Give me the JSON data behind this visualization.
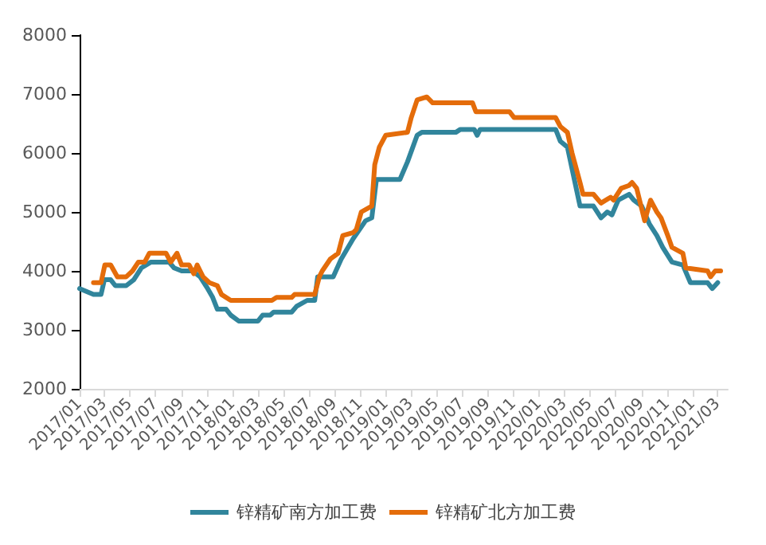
{
  "chart_data": {
    "type": "line",
    "xlim": [
      "2017-01-01",
      "2021-03-25"
    ],
    "ylim": [
      2000,
      8000
    ],
    "yticks": [
      2000,
      3000,
      4000,
      5000,
      6000,
      7000,
      8000
    ],
    "xticks": [
      {
        "value": "2017-01",
        "label": "2017/01"
      },
      {
        "value": "2017-03",
        "label": "2017/03"
      },
      {
        "value": "2017-05",
        "label": "2017/05"
      },
      {
        "value": "2017-07",
        "label": "2017/07"
      },
      {
        "value": "2017-09",
        "label": "2017/09"
      },
      {
        "value": "2017-11",
        "label": "2017/11"
      },
      {
        "value": "2018-01",
        "label": "2018/01"
      },
      {
        "value": "2018-03",
        "label": "2018/03"
      },
      {
        "value": "2018-05",
        "label": "2018/05"
      },
      {
        "value": "2018-07",
        "label": "2018/07"
      },
      {
        "value": "2018-09",
        "label": "2018/09"
      },
      {
        "value": "2018-11",
        "label": "2018/11"
      },
      {
        "value": "2019-01",
        "label": "2019/01"
      },
      {
        "value": "2019-03",
        "label": "2019/03"
      },
      {
        "value": "2019-05",
        "label": "2019/05"
      },
      {
        "value": "2019-07",
        "label": "2019/07"
      },
      {
        "value": "2019-09",
        "label": "2019/09"
      },
      {
        "value": "2019-11",
        "label": "2019/11"
      },
      {
        "value": "2020-01",
        "label": "2020/01"
      },
      {
        "value": "2020-03",
        "label": "2020/03"
      },
      {
        "value": "2020-05",
        "label": "2020/05"
      },
      {
        "value": "2020-07",
        "label": "2020/07"
      },
      {
        "value": "2020-09",
        "label": "2020/09"
      },
      {
        "value": "2020-11",
        "label": "2020/11"
      },
      {
        "value": "2021-01",
        "label": "2021/01"
      },
      {
        "value": "2021-03",
        "label": "2021/03"
      }
    ],
    "grid": false,
    "legend": "bottom",
    "marker": "none",
    "line_style": "solid",
    "series": [
      {
        "name": "锌精矿南方加工费",
        "color": "#31859c",
        "x": [
          "2017-01-01",
          "2017-02-03",
          "2017-02-21",
          "2017-03-01",
          "2017-03-16",
          "2017-03-27",
          "2017-04-22",
          "2017-05-10",
          "2017-05-28",
          "2017-06-20",
          "2017-08-02",
          "2017-08-14",
          "2017-09-01",
          "2017-09-27",
          "2017-10-15",
          "2017-11-02",
          "2017-11-14",
          "2017-11-25",
          "2017-12-16",
          "2017-12-27",
          "2018-01-15",
          "2018-03-02",
          "2018-03-13",
          "2018-03-31",
          "2018-04-08",
          "2018-05-21",
          "2018-06-02",
          "2018-06-27",
          "2018-07-15",
          "2018-07-22",
          "2018-08-28",
          "2018-09-16",
          "2018-10-15",
          "2018-11-13",
          "2018-11-28",
          "2018-12-09",
          "2019-02-03",
          "2019-02-21",
          "2019-03-16",
          "2019-03-27",
          "2019-06-16",
          "2019-06-27",
          "2019-07-30",
          "2019-08-06",
          "2019-08-13",
          "2020-02-09",
          "2020-02-20",
          "2020-03-08",
          "2020-03-26",
          "2020-04-07",
          "2020-05-09",
          "2020-05-27",
          "2020-06-11",
          "2020-06-22",
          "2020-07-07",
          "2020-08-02",
          "2020-08-13",
          "2020-09-01",
          "2020-09-19",
          "2020-10-07",
          "2020-10-21",
          "2020-11-12",
          "2020-12-08",
          "2020-12-26",
          "2021-02-05",
          "2021-02-16",
          "2021-03-01"
        ],
        "values": [
          3700,
          3600,
          3600,
          3850,
          3850,
          3750,
          3750,
          3850,
          4050,
          4150,
          4150,
          4050,
          4000,
          4000,
          3900,
          3700,
          3550,
          3350,
          3350,
          3250,
          3150,
          3150,
          3250,
          3250,
          3300,
          3300,
          3400,
          3500,
          3500,
          3900,
          3900,
          4200,
          4550,
          4850,
          4900,
          5550,
          5550,
          5850,
          6300,
          6350,
          6350,
          6400,
          6400,
          6300,
          6400,
          6400,
          6200,
          6100,
          5500,
          5100,
          5100,
          4900,
          5000,
          4950,
          5200,
          5300,
          5200,
          5100,
          4800,
          4600,
          4400,
          4150,
          4100,
          3800,
          3800,
          3700,
          3800
        ]
      },
      {
        "name": "锌精矿北方加工费",
        "color": "#e46c0a",
        "x": [
          "2017-02-03",
          "2017-02-21",
          "2017-03-02",
          "2017-03-16",
          "2017-04-01",
          "2017-04-22",
          "2017-05-07",
          "2017-05-21",
          "2017-06-05",
          "2017-06-16",
          "2017-07-26",
          "2017-08-06",
          "2017-08-21",
          "2017-09-01",
          "2017-09-19",
          "2017-09-30",
          "2017-10-08",
          "2017-10-22",
          "2017-11-06",
          "2017-11-25",
          "2017-12-05",
          "2017-12-27",
          "2018-04-04",
          "2018-04-15",
          "2018-05-21",
          "2018-05-28",
          "2018-07-15",
          "2018-07-26",
          "2018-08-02",
          "2018-08-21",
          "2018-09-09",
          "2018-09-20",
          "2018-10-15",
          "2018-10-22",
          "2018-11-03",
          "2018-11-28",
          "2018-12-05",
          "2018-12-16",
          "2018-12-31",
          "2019-02-21",
          "2019-03-02",
          "2019-03-16",
          "2019-04-08",
          "2019-04-22",
          "2019-07-26",
          "2019-08-03",
          "2019-10-22",
          "2019-11-02",
          "2020-02-09",
          "2020-02-20",
          "2020-03-08",
          "2020-03-19",
          "2020-04-07",
          "2020-04-14",
          "2020-05-09",
          "2020-05-27",
          "2020-06-19",
          "2020-06-26",
          "2020-07-14",
          "2020-08-02",
          "2020-08-09",
          "2020-08-20",
          "2020-09-08",
          "2020-09-22",
          "2020-10-07",
          "2020-10-17",
          "2020-11-02",
          "2020-11-12",
          "2020-12-08",
          "2020-12-15",
          "2021-02-05",
          "2021-02-12",
          "2021-02-23",
          "2021-03-08"
        ],
        "values": [
          3800,
          3800,
          4100,
          4100,
          3900,
          3900,
          4000,
          4150,
          4150,
          4300,
          4300,
          4150,
          4300,
          4100,
          4100,
          3950,
          4100,
          3900,
          3800,
          3750,
          3600,
          3500,
          3500,
          3550,
          3550,
          3600,
          3600,
          3900,
          4000,
          4200,
          4300,
          4600,
          4650,
          4700,
          5000,
          5100,
          5800,
          6100,
          6300,
          6350,
          6600,
          6900,
          6950,
          6850,
          6850,
          6700,
          6700,
          6600,
          6600,
          6450,
          6350,
          6000,
          5500,
          5300,
          5300,
          5150,
          5250,
          5200,
          5400,
          5450,
          5500,
          5400,
          4850,
          5200,
          5000,
          4900,
          4600,
          4400,
          4300,
          4050,
          4000,
          3900,
          4000,
          4000
        ]
      }
    ]
  }
}
